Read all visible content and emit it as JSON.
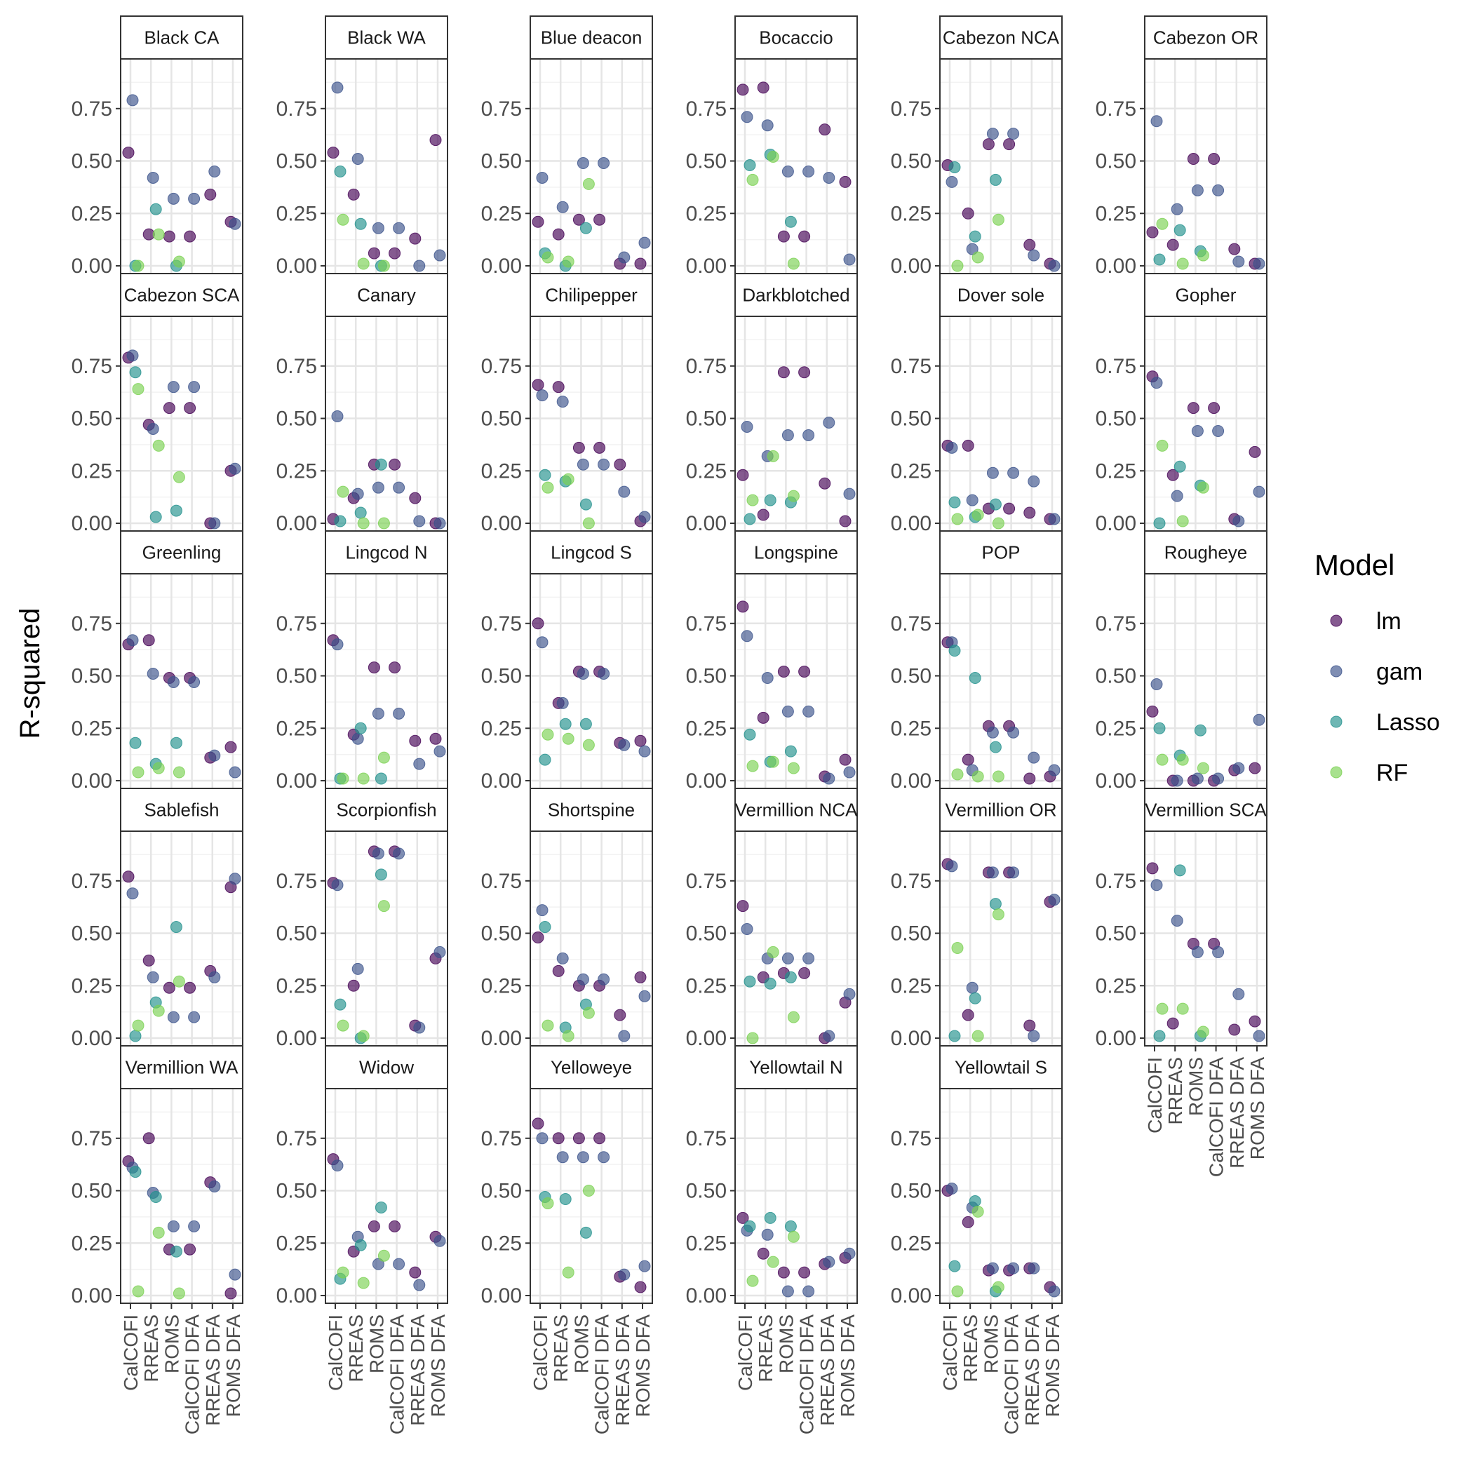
{
  "chart_data": {
    "type": "scatter",
    "ylabel": "R-squared",
    "xlabel": "",
    "ylim": [
      0,
      0.95
    ],
    "yticks": [
      "0.00",
      "0.25",
      "0.50",
      "0.75"
    ],
    "categories": [
      "CalCOFI",
      "RREAS",
      "ROMS",
      "CalCOFI DFA",
      "RREAS DFA",
      "ROMS DFA"
    ],
    "grid": true,
    "legend": {
      "title": "Model",
      "position": "right",
      "entries": [
        {
          "name": "lm",
          "color": "#440154"
        },
        {
          "name": "gam",
          "color": "#3B528B"
        },
        {
          "name": "Lasso",
          "color": "#21908C"
        },
        {
          "name": "RF",
          "color": "#7AD151"
        }
      ]
    },
    "panels": [
      {
        "title": "Black CA",
        "values": {
          "lm": [
            0.54,
            0.15,
            0.14,
            0.14,
            0.34,
            0.21
          ],
          "gam": [
            0.79,
            0.42,
            0.32,
            0.32,
            0.45,
            0.2
          ],
          "Lasso": [
            0.0,
            0.27,
            0.0,
            null,
            null,
            null
          ],
          "RF": [
            0.0,
            0.15,
            0.02,
            null,
            null,
            null
          ]
        }
      },
      {
        "title": "Black WA",
        "values": {
          "lm": [
            0.54,
            0.34,
            0.06,
            0.06,
            0.13,
            0.6
          ],
          "gam": [
            0.85,
            0.51,
            0.18,
            0.18,
            0.0,
            0.05
          ],
          "Lasso": [
            0.45,
            0.2,
            0.0,
            null,
            null,
            null
          ],
          "RF": [
            0.22,
            0.01,
            0.0,
            null,
            null,
            null
          ]
        }
      },
      {
        "title": "Blue deacon",
        "values": {
          "lm": [
            0.21,
            0.15,
            0.22,
            0.22,
            0.01,
            0.01
          ],
          "gam": [
            0.42,
            0.28,
            0.49,
            0.49,
            0.04,
            0.11
          ],
          "Lasso": [
            0.06,
            0.0,
            0.18,
            null,
            null,
            null
          ],
          "RF": [
            0.04,
            0.02,
            0.39,
            null,
            null,
            null
          ]
        }
      },
      {
        "title": "Bocaccio",
        "values": {
          "lm": [
            0.84,
            0.85,
            0.14,
            0.14,
            0.65,
            0.4
          ],
          "gam": [
            0.71,
            0.67,
            0.45,
            0.45,
            0.42,
            0.03
          ],
          "Lasso": [
            0.48,
            0.53,
            0.21,
            null,
            null,
            null
          ],
          "RF": [
            0.41,
            0.52,
            0.01,
            null,
            null,
            null
          ]
        }
      },
      {
        "title": "Cabezon NCA",
        "values": {
          "lm": [
            0.48,
            0.25,
            0.58,
            0.58,
            0.1,
            0.01
          ],
          "gam": [
            0.4,
            0.08,
            0.63,
            0.63,
            0.05,
            0.0
          ],
          "Lasso": [
            0.47,
            0.14,
            0.41,
            null,
            null,
            null
          ],
          "RF": [
            0.0,
            0.04,
            0.22,
            null,
            null,
            null
          ]
        }
      },
      {
        "title": "Cabezon OR",
        "values": {
          "lm": [
            0.16,
            0.1,
            0.51,
            0.51,
            0.08,
            0.01
          ],
          "gam": [
            0.69,
            0.27,
            0.36,
            0.36,
            0.02,
            0.01
          ],
          "Lasso": [
            0.03,
            0.17,
            0.07,
            null,
            null,
            null
          ],
          "RF": [
            0.2,
            0.01,
            0.05,
            null,
            null,
            null
          ]
        }
      },
      {
        "title": "Cabezon SCA",
        "values": {
          "lm": [
            0.79,
            0.47,
            0.55,
            0.55,
            0.0,
            0.25
          ],
          "gam": [
            0.8,
            0.45,
            0.65,
            0.65,
            0.0,
            0.26
          ],
          "Lasso": [
            0.72,
            0.03,
            0.06,
            null,
            null,
            null
          ],
          "RF": [
            0.64,
            0.37,
            0.22,
            null,
            null,
            null
          ]
        }
      },
      {
        "title": "Canary",
        "values": {
          "lm": [
            0.02,
            0.12,
            0.28,
            0.28,
            0.12,
            0.0
          ],
          "gam": [
            0.51,
            0.14,
            0.17,
            0.17,
            0.01,
            0.0
          ],
          "Lasso": [
            0.01,
            0.05,
            0.28,
            null,
            null,
            null
          ],
          "RF": [
            0.15,
            0.0,
            0.0,
            null,
            null,
            null
          ]
        }
      },
      {
        "title": "Chilipepper",
        "values": {
          "lm": [
            0.66,
            0.65,
            0.36,
            0.36,
            0.28,
            0.01
          ],
          "gam": [
            0.61,
            0.58,
            0.28,
            0.28,
            0.15,
            0.03
          ],
          "Lasso": [
            0.23,
            0.2,
            0.09,
            null,
            null,
            null
          ],
          "RF": [
            0.17,
            0.21,
            0.0,
            null,
            null,
            null
          ]
        }
      },
      {
        "title": "Darkblotched",
        "values": {
          "lm": [
            0.23,
            0.04,
            0.72,
            0.72,
            0.19,
            0.01
          ],
          "gam": [
            0.46,
            0.32,
            0.42,
            0.42,
            0.48,
            0.14
          ],
          "Lasso": [
            0.02,
            0.11,
            0.1,
            null,
            null,
            null
          ],
          "RF": [
            0.11,
            0.32,
            0.13,
            null,
            null,
            null
          ]
        }
      },
      {
        "title": "Dover sole",
        "values": {
          "lm": [
            0.37,
            0.37,
            0.07,
            0.07,
            0.05,
            0.02
          ],
          "gam": [
            0.36,
            0.11,
            0.24,
            0.24,
            0.2,
            0.02
          ],
          "Lasso": [
            0.1,
            0.03,
            0.09,
            null,
            null,
            null
          ],
          "RF": [
            0.02,
            0.04,
            0.0,
            null,
            null,
            null
          ]
        }
      },
      {
        "title": "Gopher",
        "values": {
          "lm": [
            0.7,
            0.23,
            0.55,
            0.55,
            0.02,
            0.34
          ],
          "gam": [
            0.67,
            0.13,
            0.44,
            0.44,
            0.01,
            0.15
          ],
          "Lasso": [
            0.0,
            0.27,
            0.18,
            null,
            null,
            null
          ],
          "RF": [
            0.37,
            0.01,
            0.17,
            null,
            null,
            null
          ]
        }
      },
      {
        "title": "Greenling",
        "values": {
          "lm": [
            0.65,
            0.67,
            0.49,
            0.49,
            0.11,
            0.16
          ],
          "gam": [
            0.67,
            0.51,
            0.47,
            0.47,
            0.12,
            0.04
          ],
          "Lasso": [
            0.18,
            0.08,
            0.18,
            null,
            null,
            null
          ],
          "RF": [
            0.04,
            0.06,
            0.04,
            null,
            null,
            null
          ]
        }
      },
      {
        "title": "Lingcod N",
        "values": {
          "lm": [
            0.67,
            0.22,
            0.54,
            0.54,
            0.19,
            0.2
          ],
          "gam": [
            0.65,
            0.2,
            0.32,
            0.32,
            0.08,
            0.14
          ],
          "Lasso": [
            0.01,
            0.25,
            0.01,
            null,
            null,
            null
          ],
          "RF": [
            0.01,
            0.01,
            0.11,
            null,
            null,
            null
          ]
        }
      },
      {
        "title": "Lingcod S",
        "values": {
          "lm": [
            0.75,
            0.37,
            0.52,
            0.52,
            0.18,
            0.19
          ],
          "gam": [
            0.66,
            0.37,
            0.51,
            0.51,
            0.17,
            0.14
          ],
          "Lasso": [
            0.1,
            0.27,
            0.27,
            null,
            null,
            null
          ],
          "RF": [
            0.22,
            0.2,
            0.17,
            null,
            null,
            null
          ]
        }
      },
      {
        "title": "Longspine",
        "values": {
          "lm": [
            0.83,
            0.3,
            0.52,
            0.52,
            0.02,
            0.1
          ],
          "gam": [
            0.69,
            0.49,
            0.33,
            0.33,
            0.01,
            0.04
          ],
          "Lasso": [
            0.22,
            0.09,
            0.14,
            null,
            null,
            null
          ],
          "RF": [
            0.07,
            0.09,
            0.06,
            null,
            null,
            null
          ]
        }
      },
      {
        "title": "POP",
        "values": {
          "lm": [
            0.66,
            0.1,
            0.26,
            0.26,
            0.01,
            0.02
          ],
          "gam": [
            0.66,
            0.05,
            0.23,
            0.23,
            0.11,
            0.05
          ],
          "Lasso": [
            0.62,
            0.49,
            0.16,
            null,
            null,
            null
          ],
          "RF": [
            0.03,
            0.02,
            0.02,
            null,
            null,
            null
          ]
        }
      },
      {
        "title": "Rougheye",
        "values": {
          "lm": [
            0.33,
            0.0,
            0.0,
            0.0,
            0.05,
            0.06
          ],
          "gam": [
            0.46,
            0.0,
            0.01,
            0.01,
            0.06,
            0.29
          ],
          "Lasso": [
            0.25,
            0.12,
            0.24,
            null,
            null,
            null
          ],
          "RF": [
            0.1,
            0.1,
            0.06,
            null,
            null,
            null
          ]
        }
      },
      {
        "title": "Sablefish",
        "values": {
          "lm": [
            0.77,
            0.37,
            0.24,
            0.24,
            0.32,
            0.72
          ],
          "gam": [
            0.69,
            0.29,
            0.1,
            0.1,
            0.29,
            0.76
          ],
          "Lasso": [
            0.01,
            0.17,
            0.53,
            null,
            null,
            null
          ],
          "RF": [
            0.06,
            0.13,
            0.27,
            null,
            null,
            null
          ]
        }
      },
      {
        "title": "Scorpionfish",
        "values": {
          "lm": [
            0.74,
            0.25,
            0.89,
            0.89,
            0.06,
            0.38
          ],
          "gam": [
            0.73,
            0.33,
            0.88,
            0.88,
            0.05,
            0.41
          ],
          "Lasso": [
            0.16,
            0.0,
            0.78,
            null,
            null,
            null
          ],
          "RF": [
            0.06,
            0.01,
            0.63,
            null,
            null,
            null
          ]
        }
      },
      {
        "title": "Shortspine",
        "values": {
          "lm": [
            0.48,
            0.32,
            0.25,
            0.25,
            0.11,
            0.29
          ],
          "gam": [
            0.61,
            0.38,
            0.28,
            0.28,
            0.01,
            0.2
          ],
          "Lasso": [
            0.53,
            0.05,
            0.16,
            null,
            null,
            null
          ],
          "RF": [
            0.06,
            0.01,
            0.12,
            null,
            null,
            null
          ]
        }
      },
      {
        "title": "Vermillion NCA",
        "values": {
          "lm": [
            0.63,
            0.29,
            0.31,
            0.31,
            0.0,
            0.17
          ],
          "gam": [
            0.52,
            0.38,
            0.38,
            0.38,
            0.01,
            0.21
          ],
          "Lasso": [
            0.27,
            0.26,
            0.29,
            null,
            null,
            null
          ],
          "RF": [
            0.0,
            0.41,
            0.1,
            null,
            null,
            null
          ]
        }
      },
      {
        "title": "Vermillion OR",
        "values": {
          "lm": [
            0.83,
            0.11,
            0.79,
            0.79,
            0.06,
            0.65
          ],
          "gam": [
            0.82,
            0.24,
            0.79,
            0.79,
            0.01,
            0.66
          ],
          "Lasso": [
            0.01,
            0.19,
            0.64,
            null,
            null,
            null
          ],
          "RF": [
            0.43,
            0.01,
            0.59,
            null,
            null,
            null
          ]
        }
      },
      {
        "title": "Vermillion SCA",
        "values": {
          "lm": [
            0.81,
            0.07,
            0.45,
            0.45,
            0.04,
            0.08
          ],
          "gam": [
            0.73,
            0.56,
            0.41,
            0.41,
            0.21,
            0.01
          ],
          "Lasso": [
            0.01,
            0.8,
            0.01,
            null,
            null,
            null
          ],
          "RF": [
            0.14,
            0.14,
            0.03,
            null,
            null,
            null
          ]
        }
      },
      {
        "title": "Vermillion WA",
        "values": {
          "lm": [
            0.64,
            0.75,
            0.22,
            0.22,
            0.54,
            0.01
          ],
          "gam": [
            0.61,
            0.49,
            0.33,
            0.33,
            0.52,
            0.1
          ],
          "Lasso": [
            0.59,
            0.47,
            0.21,
            null,
            null,
            null
          ],
          "RF": [
            0.02,
            0.3,
            0.01,
            null,
            null,
            null
          ]
        }
      },
      {
        "title": "Widow",
        "values": {
          "lm": [
            0.65,
            0.21,
            0.33,
            0.33,
            0.11,
            0.28
          ],
          "gam": [
            0.62,
            0.28,
            0.15,
            0.15,
            0.05,
            0.26
          ],
          "Lasso": [
            0.08,
            0.24,
            0.42,
            null,
            null,
            null
          ],
          "RF": [
            0.11,
            0.06,
            0.19,
            null,
            null,
            null
          ]
        }
      },
      {
        "title": "Yelloweye",
        "values": {
          "lm": [
            0.82,
            0.75,
            0.75,
            0.75,
            0.09,
            0.04
          ],
          "gam": [
            0.75,
            0.66,
            0.66,
            0.66,
            0.1,
            0.14
          ],
          "Lasso": [
            0.47,
            0.46,
            0.3,
            null,
            null,
            null
          ],
          "RF": [
            0.44,
            0.11,
            0.5,
            null,
            null,
            null
          ]
        }
      },
      {
        "title": "Yellowtail N",
        "values": {
          "lm": [
            0.37,
            0.2,
            0.11,
            0.11,
            0.15,
            0.18
          ],
          "gam": [
            0.31,
            0.29,
            0.02,
            0.02,
            0.16,
            0.2
          ],
          "Lasso": [
            0.33,
            0.37,
            0.33,
            null,
            null,
            null
          ],
          "RF": [
            0.07,
            0.16,
            0.28,
            null,
            null,
            null
          ]
        }
      },
      {
        "title": "Yellowtail S",
        "values": {
          "lm": [
            0.5,
            0.35,
            0.12,
            0.12,
            0.13,
            0.04
          ],
          "gam": [
            0.51,
            0.42,
            0.13,
            0.13,
            0.13,
            0.02
          ],
          "Lasso": [
            0.14,
            0.45,
            0.02,
            null,
            null,
            null
          ],
          "RF": [
            0.02,
            0.4,
            0.04,
            null,
            null,
            null
          ]
        }
      }
    ]
  }
}
